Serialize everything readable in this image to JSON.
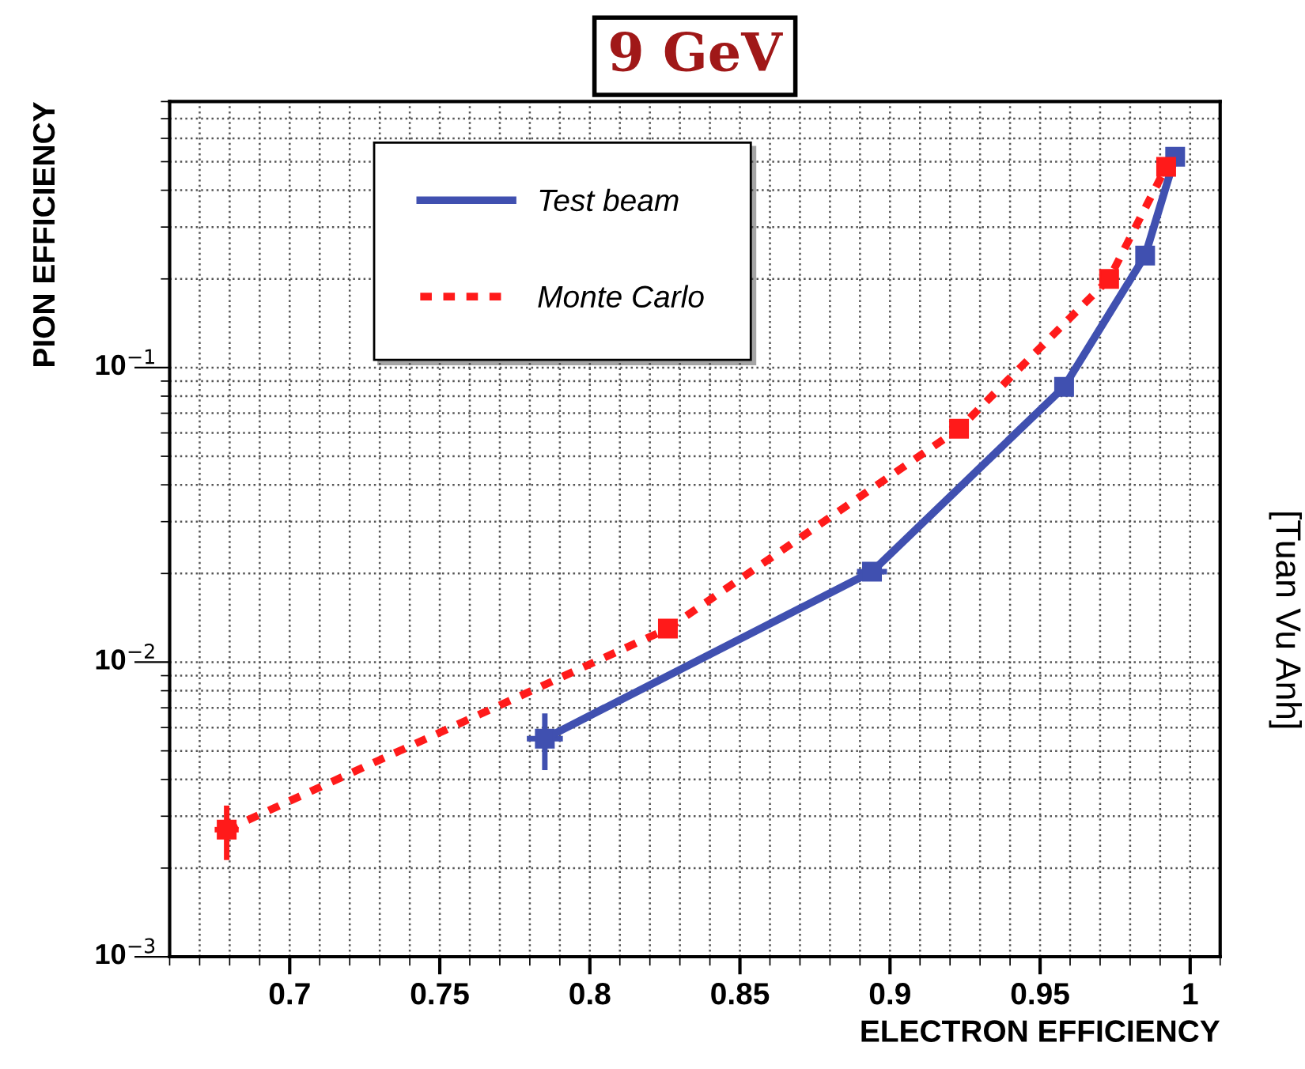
{
  "chart_data": {
    "type": "line",
    "title": "9 GeV",
    "xlabel": "ELECTRON EFFICIENCY",
    "ylabel": "PION EFFICIENCY",
    "annotations": [
      "[Tuan Vu Anh]"
    ],
    "log": "y",
    "grid": true,
    "legend": "top left",
    "marker": "square",
    "xlim": [
      0.66,
      1.01
    ],
    "xticks": [
      0.7,
      0.75,
      0.8,
      0.85,
      0.9,
      0.95,
      1
    ],
    "ylim": [
      0.001,
      0.8
    ],
    "yticks": [
      {
        "value": 0.001,
        "label": "10$^{−3}$"
      },
      {
        "value": 0.01,
        "label": "10$^{−2}$"
      },
      {
        "value": 0.1,
        "label": "10$^{−1}$"
      }
    ],
    "series": [
      {
        "name": "Test beam",
        "color": "#4050b0",
        "line_style": "solid",
        "x": [
          0.785,
          0.894,
          0.958,
          0.985,
          0.995
        ],
        "values": [
          0.0055,
          0.0203,
          0.086,
          0.24,
          0.52
        ],
        "errors": [
          [
            0.0043,
            0.0067
          ],
          null,
          null,
          null,
          null
        ],
        "xerrors": [
          0.006,
          0.005,
          null,
          null,
          null
        ]
      },
      {
        "name": "Monte Carlo",
        "color": "#ff1a1a",
        "line_style": "dotted",
        "x": [
          0.679,
          0.826,
          0.923,
          0.973,
          0.992
        ],
        "values": [
          0.0027,
          0.013,
          0.062,
          0.2,
          0.48
        ],
        "errors": [
          [
            0.00213,
            0.00326
          ],
          null,
          null,
          null,
          null
        ],
        "xerrors": [
          0.004,
          0.003,
          null,
          null,
          null
        ]
      }
    ]
  }
}
